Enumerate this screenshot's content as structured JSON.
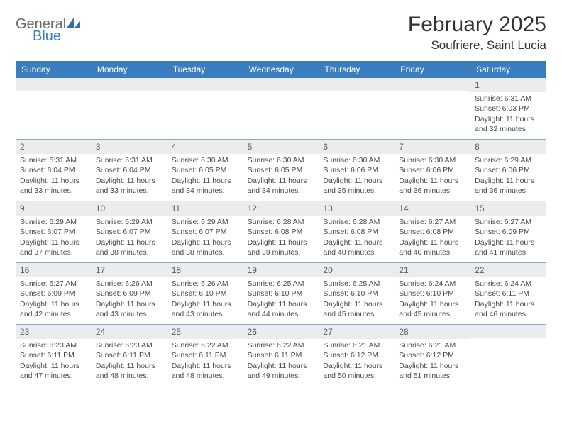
{
  "brand": {
    "general": "General",
    "blue": "Blue"
  },
  "title": "February 2025",
  "location": "Soufriere, Saint Lucia",
  "colors": {
    "header_bg": "#3a7ebf",
    "header_text": "#ffffff",
    "grid_line": "#8aa9c4",
    "daynum_bg": "#ececec",
    "body_text": "#4a4a4a"
  },
  "day_names": [
    "Sunday",
    "Monday",
    "Tuesday",
    "Wednesday",
    "Thursday",
    "Friday",
    "Saturday"
  ],
  "weeks": [
    [
      {
        "n": "",
        "sr": "",
        "ss": "",
        "dl": ""
      },
      {
        "n": "",
        "sr": "",
        "ss": "",
        "dl": ""
      },
      {
        "n": "",
        "sr": "",
        "ss": "",
        "dl": ""
      },
      {
        "n": "",
        "sr": "",
        "ss": "",
        "dl": ""
      },
      {
        "n": "",
        "sr": "",
        "ss": "",
        "dl": ""
      },
      {
        "n": "",
        "sr": "",
        "ss": "",
        "dl": ""
      },
      {
        "n": "1",
        "sr": "Sunrise: 6:31 AM",
        "ss": "Sunset: 6:03 PM",
        "dl": "Daylight: 11 hours and 32 minutes."
      }
    ],
    [
      {
        "n": "2",
        "sr": "Sunrise: 6:31 AM",
        "ss": "Sunset: 6:04 PM",
        "dl": "Daylight: 11 hours and 33 minutes."
      },
      {
        "n": "3",
        "sr": "Sunrise: 6:31 AM",
        "ss": "Sunset: 6:04 PM",
        "dl": "Daylight: 11 hours and 33 minutes."
      },
      {
        "n": "4",
        "sr": "Sunrise: 6:30 AM",
        "ss": "Sunset: 6:05 PM",
        "dl": "Daylight: 11 hours and 34 minutes."
      },
      {
        "n": "5",
        "sr": "Sunrise: 6:30 AM",
        "ss": "Sunset: 6:05 PM",
        "dl": "Daylight: 11 hours and 34 minutes."
      },
      {
        "n": "6",
        "sr": "Sunrise: 6:30 AM",
        "ss": "Sunset: 6:06 PM",
        "dl": "Daylight: 11 hours and 35 minutes."
      },
      {
        "n": "7",
        "sr": "Sunrise: 6:30 AM",
        "ss": "Sunset: 6:06 PM",
        "dl": "Daylight: 11 hours and 36 minutes."
      },
      {
        "n": "8",
        "sr": "Sunrise: 6:29 AM",
        "ss": "Sunset: 6:06 PM",
        "dl": "Daylight: 11 hours and 36 minutes."
      }
    ],
    [
      {
        "n": "9",
        "sr": "Sunrise: 6:29 AM",
        "ss": "Sunset: 6:07 PM",
        "dl": "Daylight: 11 hours and 37 minutes."
      },
      {
        "n": "10",
        "sr": "Sunrise: 6:29 AM",
        "ss": "Sunset: 6:07 PM",
        "dl": "Daylight: 11 hours and 38 minutes."
      },
      {
        "n": "11",
        "sr": "Sunrise: 6:29 AM",
        "ss": "Sunset: 6:07 PM",
        "dl": "Daylight: 11 hours and 38 minutes."
      },
      {
        "n": "12",
        "sr": "Sunrise: 6:28 AM",
        "ss": "Sunset: 6:08 PM",
        "dl": "Daylight: 11 hours and 39 minutes."
      },
      {
        "n": "13",
        "sr": "Sunrise: 6:28 AM",
        "ss": "Sunset: 6:08 PM",
        "dl": "Daylight: 11 hours and 40 minutes."
      },
      {
        "n": "14",
        "sr": "Sunrise: 6:27 AM",
        "ss": "Sunset: 6:08 PM",
        "dl": "Daylight: 11 hours and 40 minutes."
      },
      {
        "n": "15",
        "sr": "Sunrise: 6:27 AM",
        "ss": "Sunset: 6:09 PM",
        "dl": "Daylight: 11 hours and 41 minutes."
      }
    ],
    [
      {
        "n": "16",
        "sr": "Sunrise: 6:27 AM",
        "ss": "Sunset: 6:09 PM",
        "dl": "Daylight: 11 hours and 42 minutes."
      },
      {
        "n": "17",
        "sr": "Sunrise: 6:26 AM",
        "ss": "Sunset: 6:09 PM",
        "dl": "Daylight: 11 hours and 43 minutes."
      },
      {
        "n": "18",
        "sr": "Sunrise: 6:26 AM",
        "ss": "Sunset: 6:10 PM",
        "dl": "Daylight: 11 hours and 43 minutes."
      },
      {
        "n": "19",
        "sr": "Sunrise: 6:25 AM",
        "ss": "Sunset: 6:10 PM",
        "dl": "Daylight: 11 hours and 44 minutes."
      },
      {
        "n": "20",
        "sr": "Sunrise: 6:25 AM",
        "ss": "Sunset: 6:10 PM",
        "dl": "Daylight: 11 hours and 45 minutes."
      },
      {
        "n": "21",
        "sr": "Sunrise: 6:24 AM",
        "ss": "Sunset: 6:10 PM",
        "dl": "Daylight: 11 hours and 45 minutes."
      },
      {
        "n": "22",
        "sr": "Sunrise: 6:24 AM",
        "ss": "Sunset: 6:11 PM",
        "dl": "Daylight: 11 hours and 46 minutes."
      }
    ],
    [
      {
        "n": "23",
        "sr": "Sunrise: 6:23 AM",
        "ss": "Sunset: 6:11 PM",
        "dl": "Daylight: 11 hours and 47 minutes."
      },
      {
        "n": "24",
        "sr": "Sunrise: 6:23 AM",
        "ss": "Sunset: 6:11 PM",
        "dl": "Daylight: 11 hours and 48 minutes."
      },
      {
        "n": "25",
        "sr": "Sunrise: 6:22 AM",
        "ss": "Sunset: 6:11 PM",
        "dl": "Daylight: 11 hours and 48 minutes."
      },
      {
        "n": "26",
        "sr": "Sunrise: 6:22 AM",
        "ss": "Sunset: 6:11 PM",
        "dl": "Daylight: 11 hours and 49 minutes."
      },
      {
        "n": "27",
        "sr": "Sunrise: 6:21 AM",
        "ss": "Sunset: 6:12 PM",
        "dl": "Daylight: 11 hours and 50 minutes."
      },
      {
        "n": "28",
        "sr": "Sunrise: 6:21 AM",
        "ss": "Sunset: 6:12 PM",
        "dl": "Daylight: 11 hours and 51 minutes."
      },
      {
        "n": "",
        "sr": "",
        "ss": "",
        "dl": ""
      }
    ]
  ]
}
